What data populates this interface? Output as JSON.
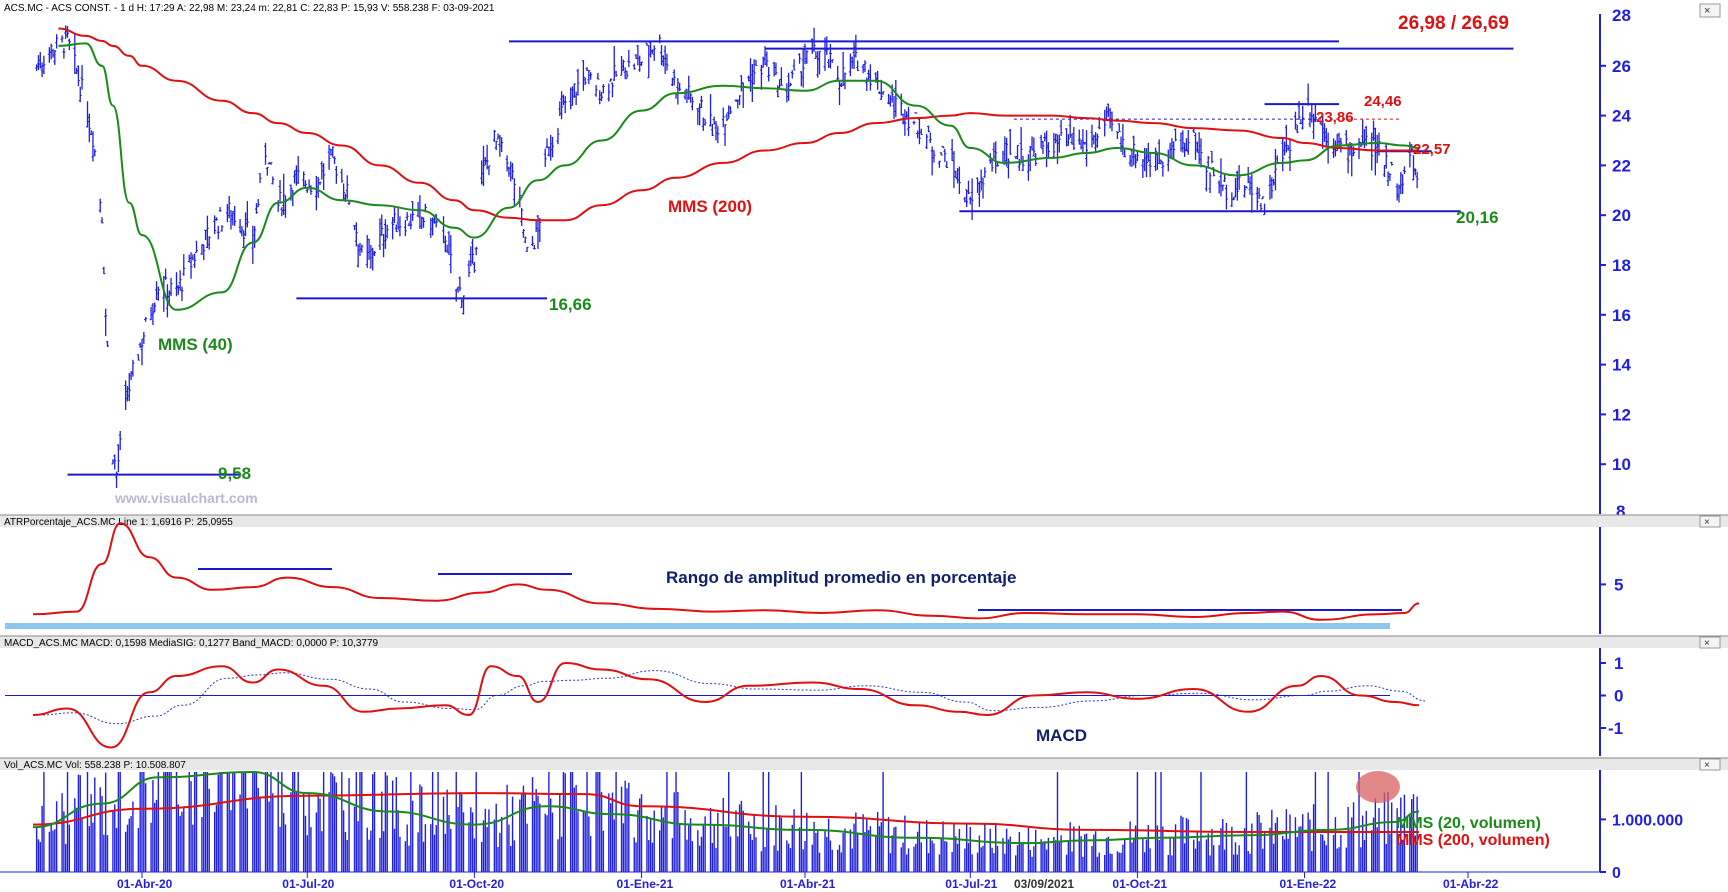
{
  "colors": {
    "price": "#1f1fe0",
    "mms40": "#1a8a1a",
    "mms200": "#e01010",
    "level": "#1a1acc",
    "accent_red": "#e01010",
    "accent_green": "#1a8a1a",
    "axis": "#1f1fe0",
    "panel_bar": "#e8e8e8",
    "highlight": "#d96060",
    "band": "#8ec6ee"
  },
  "main_panel": {
    "header": "ACS.MC - ACS CONST. -  1 d  H: 17:29  A: 22,98  M: 23,24  m: 22,81  C: 22,83  P: 15,93  V: 558.238  F: 03-09-2021",
    "yticks": [
      "26",
      "24",
      "22",
      "20",
      "18",
      "16",
      "14",
      "12",
      "10"
    ],
    "ytick_values": [
      26,
      24,
      22,
      20,
      18,
      16,
      14,
      12,
      10
    ],
    "ylim": [
      8,
      28
    ],
    "top_tick_fragment": "28",
    "bottom_tick_fragment": "8",
    "watermark": "www.visualchart.com",
    "labels": {
      "top_level": "26,98 / 26,69",
      "level_2446": "24,46",
      "level_2386": "23,86",
      "level_2257": "22,57",
      "level_2016": "20,16",
      "level_1666": "16,66",
      "level_958": "9,58",
      "mms200": "MMS (200)",
      "mms40": "MMS (40)"
    }
  },
  "atr_panel": {
    "header": "ATRPorcentaje_ACS.MC  Line 1: 1,6916  P: 25,0955",
    "ytick": "5",
    "title": "Rango de amplitud promedio en porcentaje"
  },
  "macd_panel": {
    "header": "MACD_ACS.MC  MACD: 0,1598  MediaSIG: 0,1277  Band_MACD: 0,0000  P: 10,3779",
    "yticks": [
      "1",
      "0",
      "-1"
    ],
    "title": "MACD"
  },
  "vol_panel": {
    "header": "Vol_ACS.MC  Vol: 558.238  P: 10.508.807",
    "yticks": [
      "1.000.000",
      "0"
    ],
    "legend_mms20": "MMS (20, volumen)",
    "legend_mms200": "MMS (200, volumen)"
  },
  "x_axis": {
    "ticks": [
      "01-Abr-20",
      "01-Jul-20",
      "01-Oct-20",
      "01-Ene-21",
      "01-Abr-21",
      "01-Jul-21",
      "01-Oct-21",
      "01-Ene-22",
      "01-Abr-22"
    ],
    "current_date": "03/09/2021"
  },
  "chart_data": {
    "type": "line",
    "x": [
      "2020-02-15",
      "2020-03-01",
      "2020-03-10",
      "2020-03-16",
      "2020-03-25",
      "2020-04-01",
      "2020-04-20",
      "2020-05-15",
      "2020-06-01",
      "2020-06-15",
      "2020-07-01",
      "2020-07-20",
      "2020-08-10",
      "2020-09-01",
      "2020-09-20",
      "2020-10-01",
      "2020-10-20",
      "2020-11-05",
      "2020-11-20",
      "2020-12-10",
      "2021-01-01",
      "2021-01-20",
      "2021-02-15",
      "2021-03-10",
      "2021-04-01",
      "2021-04-20",
      "2021-05-10",
      "2021-06-01",
      "2021-06-20",
      "2021-07-01",
      "2021-07-20",
      "2021-08-15",
      "2021-09-03",
      "2021-09-20",
      "2021-10-10",
      "2021-11-01",
      "2021-11-25",
      "2021-12-20",
      "2022-01-01",
      "2022-01-20",
      "2022-02-10",
      "2022-02-25",
      "2022-03-05"
    ],
    "series": [
      {
        "name": "MMS (200)",
        "values": [
          27.5,
          27.2,
          27.0,
          26.8,
          26.4,
          26.0,
          25.4,
          24.6,
          24.1,
          23.7,
          23.3,
          22.8,
          22.0,
          21.3,
          20.6,
          20.2,
          19.9,
          19.8,
          19.8,
          20.4,
          21.0,
          21.5,
          22.1,
          22.6,
          22.9,
          23.3,
          23.7,
          23.9,
          24.0,
          24.1,
          24.0,
          24.0,
          23.9,
          23.8,
          23.7,
          23.5,
          23.4,
          23.1,
          22.9,
          22.7,
          22.6,
          22.6,
          22.6
        ]
      },
      {
        "name": "MMS (40)",
        "values": [
          26.8,
          26.9,
          26.0,
          24.4,
          20.5,
          19.2,
          16.2,
          16.9,
          18.9,
          20.5,
          21.1,
          20.6,
          20.4,
          20.2,
          19.5,
          19.1,
          20.3,
          21.4,
          22.0,
          23.0,
          24.2,
          24.9,
          25.2,
          25.1,
          25.0,
          25.4,
          25.4,
          24.4,
          23.6,
          22.7,
          22.1,
          22.3,
          22.5,
          22.7,
          22.5,
          22.0,
          21.6,
          22.1,
          22.2,
          22.8,
          22.9,
          22.8,
          22.7
        ]
      }
    ],
    "price_levels": [
      {
        "label": "26,98 / 26,69",
        "values": [
          26.98,
          26.69
        ]
      },
      {
        "label": "24,46",
        "value": 24.46
      },
      {
        "label": "23,86",
        "value": 23.86
      },
      {
        "label": "22,57",
        "value": 22.57
      },
      {
        "label": "20,16",
        "value": 20.16
      },
      {
        "label": "16,66",
        "value": 16.66
      },
      {
        "label": "9,58",
        "value": 9.58
      }
    ],
    "price_path": [
      [
        "2020-02-01",
        25.8
      ],
      [
        "2020-02-10",
        26.6
      ],
      [
        "2020-02-20",
        27.0
      ],
      [
        "2020-02-28",
        25.0
      ],
      [
        "2020-03-05",
        23.2
      ],
      [
        "2020-03-10",
        20.0
      ],
      [
        "2020-03-12",
        16.0
      ],
      [
        "2020-03-16",
        10.5
      ],
      [
        "2020-03-18",
        9.6
      ],
      [
        "2020-03-24",
        12.8
      ],
      [
        "2020-04-01",
        15.0
      ],
      [
        "2020-04-10",
        17.2
      ],
      [
        "2020-04-20",
        16.9
      ],
      [
        "2020-05-01",
        18.5
      ],
      [
        "2020-05-10",
        19.5
      ],
      [
        "2020-05-20",
        20.2
      ],
      [
        "2020-06-01",
        19.0
      ],
      [
        "2020-06-08",
        22.6
      ],
      [
        "2020-06-15",
        20.4
      ],
      [
        "2020-06-25",
        21.5
      ],
      [
        "2020-07-05",
        21.2
      ],
      [
        "2020-07-15",
        22.3
      ],
      [
        "2020-07-25",
        20.5
      ],
      [
        "2020-08-01",
        18.0
      ],
      [
        "2020-08-15",
        19.6
      ],
      [
        "2020-08-25",
        19.8
      ],
      [
        "2020-09-05",
        19.9
      ],
      [
        "2020-09-15",
        19.2
      ],
      [
        "2020-09-21",
        17.0
      ],
      [
        "2020-09-25",
        16.9
      ],
      [
        "2020-10-01",
        18.2
      ],
      [
        "2020-10-05",
        21.5
      ],
      [
        "2020-10-12",
        23.0
      ],
      [
        "2020-10-20",
        22.0
      ],
      [
        "2020-10-25",
        20.9
      ],
      [
        "2020-10-30",
        18.4
      ],
      [
        "2020-11-05",
        19.3
      ],
      [
        "2020-11-10",
        22.5
      ],
      [
        "2020-11-20",
        24.5
      ],
      [
        "2020-12-01",
        25.6
      ],
      [
        "2020-12-10",
        25.0
      ],
      [
        "2020-12-20",
        25.8
      ],
      [
        "2021-01-01",
        26.2
      ],
      [
        "2021-01-10",
        27.1
      ],
      [
        "2021-01-20",
        25.2
      ],
      [
        "2021-02-01",
        24.5
      ],
      [
        "2021-02-10",
        23.4
      ],
      [
        "2021-02-20",
        24.5
      ],
      [
        "2021-03-01",
        25.5
      ],
      [
        "2021-03-10",
        26.1
      ],
      [
        "2021-03-20",
        24.8
      ],
      [
        "2021-04-01",
        26.2
      ],
      [
        "2021-04-10",
        26.6
      ],
      [
        "2021-04-20",
        25.5
      ],
      [
        "2021-05-01",
        26.3
      ],
      [
        "2021-05-10",
        25.3
      ],
      [
        "2021-05-20",
        24.5
      ],
      [
        "2021-06-01",
        23.7
      ],
      [
        "2021-06-10",
        22.8
      ],
      [
        "2021-06-20",
        22.2
      ],
      [
        "2021-07-01",
        20.4
      ],
      [
        "2021-07-10",
        21.8
      ],
      [
        "2021-07-20",
        22.6
      ],
      [
        "2021-08-01",
        22.3
      ],
      [
        "2021-08-15",
        22.9
      ],
      [
        "2021-09-03",
        22.8
      ],
      [
        "2021-09-15",
        23.8
      ],
      [
        "2021-09-25",
        22.6
      ],
      [
        "2021-10-10",
        22.2
      ],
      [
        "2021-10-20",
        22.6
      ],
      [
        "2021-11-01",
        23.0
      ],
      [
        "2021-11-10",
        21.9
      ],
      [
        "2021-11-20",
        21.0
      ],
      [
        "2021-12-01",
        21.2
      ],
      [
        "2021-12-10",
        20.5
      ],
      [
        "2021-12-20",
        22.4
      ],
      [
        "2021-12-28",
        23.6
      ],
      [
        "2022-01-01",
        24.4
      ],
      [
        "2022-01-05",
        24.2
      ],
      [
        "2022-01-15",
        23.0
      ],
      [
        "2022-01-25",
        22.6
      ],
      [
        "2022-02-05",
        22.9
      ],
      [
        "2022-02-15",
        22.3
      ],
      [
        "2022-02-22",
        21.0
      ],
      [
        "2022-03-01",
        22.4
      ],
      [
        "2022-03-05",
        21.1
      ]
    ],
    "atr": {
      "name": "ATRPorcentaje_ACS.MC",
      "x": [
        "2020-02-01",
        "2020-02-25",
        "2020-03-10",
        "2020-03-20",
        "2020-04-05",
        "2020-04-20",
        "2020-05-10",
        "2020-06-01",
        "2020-06-20",
        "2020-07-15",
        "2020-08-10",
        "2020-09-10",
        "2020-10-05",
        "2020-10-25",
        "2020-11-10",
        "2020-12-10",
        "2021-01-10",
        "2021-02-10",
        "2021-03-10",
        "2021-04-10",
        "2021-05-10",
        "2021-06-10",
        "2021-07-05",
        "2021-08-01",
        "2021-09-03",
        "2021-10-01",
        "2021-11-01",
        "2021-12-01",
        "2021-12-20",
        "2022-01-10",
        "2022-02-10",
        "2022-02-25",
        "2022-03-05"
      ],
      "values": [
        2.8,
        3.0,
        6.5,
        9.5,
        7.0,
        5.5,
        4.6,
        4.8,
        5.5,
        4.8,
        4.0,
        3.8,
        4.4,
        5.0,
        4.6,
        3.6,
        3.2,
        3.0,
        3.1,
        2.9,
        3.1,
        2.7,
        2.5,
        2.9,
        2.8,
        2.8,
        2.6,
        2.9,
        3.0,
        2.4,
        2.8,
        2.9,
        3.6
      ],
      "ytick_value": 5,
      "ylim": [
        1.5,
        9
      ]
    },
    "macd": {
      "name": "MACD_ACS.MC",
      "x": [
        "2020-02-01",
        "2020-02-20",
        "2020-03-15",
        "2020-04-05",
        "2020-04-20",
        "2020-05-15",
        "2020-06-01",
        "2020-06-15",
        "2020-07-10",
        "2020-08-01",
        "2020-08-20",
        "2020-09-15",
        "2020-09-28",
        "2020-10-10",
        "2020-10-25",
        "2020-11-05",
        "2020-11-20",
        "2020-12-10",
        "2021-01-05",
        "2021-02-05",
        "2021-03-01",
        "2021-04-05",
        "2021-05-01",
        "2021-06-01",
        "2021-06-25",
        "2021-07-10",
        "2021-08-05",
        "2021-09-03",
        "2021-10-01",
        "2021-11-01",
        "2021-12-01",
        "2021-12-28",
        "2022-01-10",
        "2022-02-01",
        "2022-02-20",
        "2022-03-05"
      ],
      "values": [
        -0.6,
        -0.4,
        -1.6,
        0.1,
        0.6,
        0.9,
        0.4,
        0.8,
        0.3,
        -0.5,
        -0.4,
        -0.3,
        -0.6,
        0.9,
        0.6,
        -0.2,
        1.0,
        0.8,
        0.5,
        -0.2,
        0.3,
        0.4,
        0.2,
        -0.3,
        -0.5,
        -0.6,
        0.0,
        0.1,
        -0.1,
        0.2,
        -0.5,
        0.3,
        0.6,
        0.0,
        -0.2,
        -0.3
      ],
      "yticks": [
        1,
        0,
        -1
      ],
      "ylim": [
        -1.8,
        1.4
      ]
    },
    "volume": {
      "name": "Vol_ACS.MC",
      "mms20_x": [
        "2020-02-01",
        "2020-03-10",
        "2020-04-10",
        "2020-06-01",
        "2020-07-01",
        "2020-08-15",
        "2020-10-01",
        "2020-11-10",
        "2020-12-15",
        "2021-02-01",
        "2021-04-01",
        "2021-06-01",
        "2021-08-01",
        "2021-09-03",
        "2021-10-15",
        "2021-12-01",
        "2022-01-15",
        "2022-02-20",
        "2022-03-05"
      ],
      "mms20_values": [
        850000,
        1300000,
        1800000,
        1900000,
        1500000,
        1150000,
        900000,
        1250000,
        1100000,
        900000,
        800000,
        650000,
        550000,
        600000,
        650000,
        700000,
        800000,
        950000,
        1150000
      ],
      "mms200_x": [
        "2020-02-01",
        "2020-04-01",
        "2020-07-01",
        "2020-10-01",
        "2020-12-01",
        "2021-01-01",
        "2021-04-01",
        "2021-07-01",
        "2021-09-03",
        "2021-12-01",
        "2022-03-05"
      ],
      "mms200_values": [
        900000,
        1200000,
        1450000,
        1500000,
        1480000,
        1250000,
        1050000,
        920000,
        800000,
        760000,
        760000
      ],
      "yticks": [
        1000000,
        0
      ],
      "ylim": [
        0,
        1900000
      ]
    }
  }
}
